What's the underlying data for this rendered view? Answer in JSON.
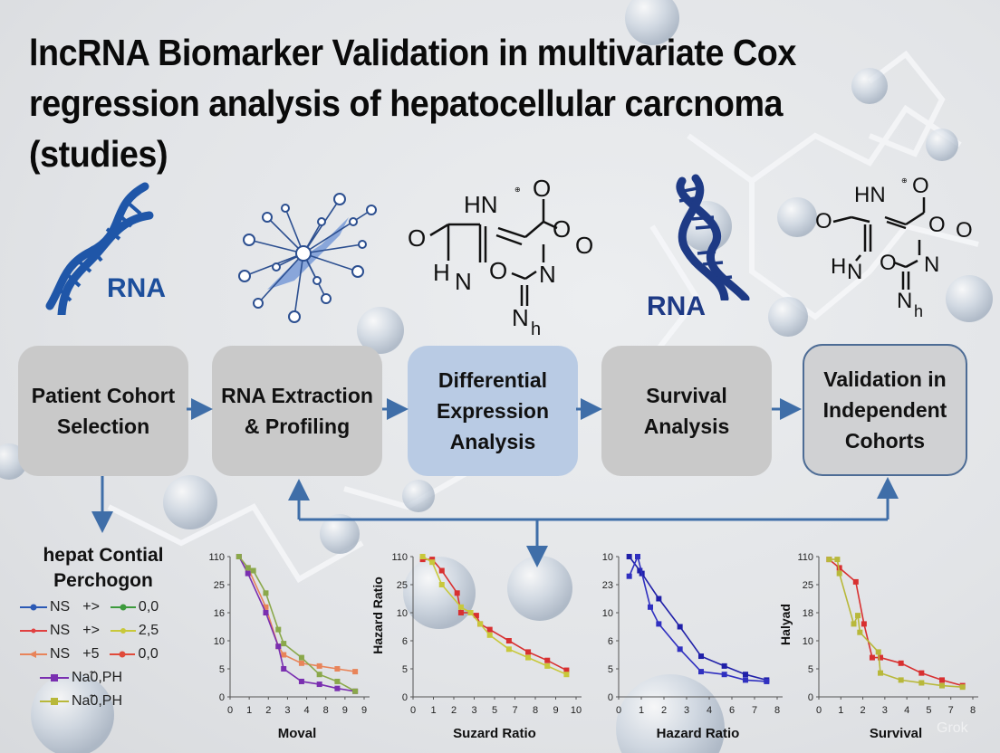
{
  "title": {
    "line1": "lncRNA Biomarker  Validation in multivariate Cox",
    "line2": "regression analysis of hepatocellular carcnoma",
    "line3": "(studies)"
  },
  "icons": [
    {
      "name": "dna-helix-icon",
      "label": "RNA"
    },
    {
      "name": "molecular-network-icon"
    },
    {
      "name": "chemical-structure-icon",
      "atoms": [
        "HN",
        "O",
        "O",
        "O",
        "O",
        "H",
        "N",
        "O",
        "N",
        "Nh"
      ]
    },
    {
      "name": "dna-helix-icon",
      "label": "RNA"
    },
    {
      "name": "chemical-structure-icon",
      "atoms": [
        "HN",
        "O",
        "O",
        "O",
        "O",
        "H",
        "N",
        "O",
        "N",
        "Nh"
      ]
    }
  ],
  "flow": {
    "steps": [
      {
        "label": "Patient Cohort\nSelection",
        "style": "gray"
      },
      {
        "label": "RNA Extraction\n& Profiling",
        "style": "gray"
      },
      {
        "label": "Differential\nExpression\nAnalysis",
        "style": "blue"
      },
      {
        "label": "Survival\nAnalysis",
        "style": "gray"
      },
      {
        "label": "Validation in\nIndependent\nCohorts",
        "style": "outlined"
      }
    ],
    "arrow_color": "#3f6ea8"
  },
  "legend": {
    "title_line1": "hepat Contial",
    "title_line2": "Perchogon",
    "rows": [
      {
        "left_label": "NS",
        "left_color": "#2b59b5",
        "mid": "+>",
        "right_label": "0,0",
        "right_color": "#3c9a3c"
      },
      {
        "left_label": "NS",
        "left_color": "#e04040",
        "mid": "+>",
        "right_label": "2,5",
        "right_color": "#c8c83a"
      },
      {
        "left_label": "NS",
        "left_color": "#e8845a",
        "mid": "+5",
        "right_label": "0,0",
        "right_color": "#e04a3a"
      },
      {
        "label": "Nа̃0,PH",
        "color": "#7a2fb0"
      },
      {
        "label": "Nа̃0,PH",
        "color": "#b8b83a"
      }
    ]
  },
  "chart_data": [
    {
      "type": "line",
      "title": "",
      "xlabel": "Moval",
      "ylabel": "",
      "x_ticks": [
        "0",
        "1",
        "2",
        "3",
        "4",
        "8",
        "9",
        "9"
      ],
      "y_ticks": [
        "0",
        "5",
        "10",
        "16",
        "25",
        "110"
      ],
      "series": [
        {
          "name": "orange",
          "color": "#e8845a",
          "x": [
            0.5,
            1,
            2,
            2.7,
            3,
            4,
            5,
            6,
            7
          ],
          "y": [
            5,
            4.6,
            3.2,
            1.8,
            1.5,
            1.2,
            1.1,
            1.0,
            0.9
          ]
        },
        {
          "name": "purple",
          "color": "#7a2fb0",
          "x": [
            0.5,
            1,
            2,
            2.7,
            3,
            4,
            5,
            6,
            7
          ],
          "y": [
            5,
            4.4,
            3.0,
            1.8,
            1.0,
            0.55,
            0.45,
            0.3,
            0.2
          ]
        },
        {
          "name": "green",
          "color": "#8aa84a",
          "x": [
            0.5,
            1,
            1.3,
            2,
            2.7,
            3,
            4,
            5,
            6,
            7
          ],
          "y": [
            5,
            4.6,
            4.5,
            3.7,
            2.4,
            1.9,
            1.4,
            0.8,
            0.55,
            0.2
          ]
        }
      ],
      "ylim": [
        0,
        5
      ]
    },
    {
      "type": "line",
      "title": "",
      "xlabel": "Suzard Ratio",
      "ylabel": "Hazard Ratio",
      "x_ticks": [
        "0",
        "1",
        "2",
        "3",
        "5",
        "7",
        "8",
        "9",
        "10"
      ],
      "y_ticks": [
        "0",
        "5",
        "6",
        "10",
        "25",
        "110"
      ],
      "series": [
        {
          "name": "red",
          "color": "#d83030",
          "x": [
            0.5,
            1,
            1.5,
            2.3,
            2.5,
            3,
            3.3,
            3.5,
            4,
            5,
            6,
            7,
            8
          ],
          "y": [
            4.9,
            4.9,
            4.5,
            3.7,
            3.0,
            3.0,
            2.9,
            2.6,
            2.4,
            2.0,
            1.6,
            1.3,
            0.95
          ]
        },
        {
          "name": "yellow",
          "color": "#c8c83a",
          "x": [
            0.5,
            1,
            1.5,
            2.5,
            3,
            3.5,
            4,
            5,
            6,
            7,
            8
          ],
          "y": [
            5.0,
            4.8,
            4.0,
            3.2,
            3.0,
            2.6,
            2.2,
            1.7,
            1.4,
            1.1,
            0.8
          ]
        }
      ],
      "ylim": [
        0,
        5
      ]
    },
    {
      "type": "line",
      "title": "",
      "xlabel": "Hazard Ratio",
      "ylabel": "",
      "x_ticks": [
        "0",
        "1",
        "2",
        "3",
        "4",
        "6",
        "7",
        "8"
      ],
      "y_ticks": [
        "0",
        "5",
        "6",
        "10",
        "23",
        "10"
      ],
      "series": [
        {
          "name": "blue-thick",
          "color": "#2020a8",
          "x": [
            0.5,
            1,
            1.1,
            1.9,
            2.9,
            3.9,
            5,
            6,
            7
          ],
          "y": [
            5.0,
            4.5,
            4.4,
            3.5,
            2.5,
            1.45,
            1.1,
            0.8,
            0.6
          ]
        },
        {
          "name": "blue-thin",
          "color": "#3030c0",
          "x": [
            0.5,
            0.9,
            1.5,
            1.9,
            2.9,
            3.9,
            5,
            6,
            7
          ],
          "y": [
            4.3,
            5.0,
            3.2,
            2.6,
            1.7,
            0.9,
            0.8,
            0.6,
            0.55
          ]
        }
      ],
      "ylim": [
        0,
        5
      ]
    },
    {
      "type": "line",
      "title": "",
      "xlabel": "Survival",
      "ylabel": "Halyad",
      "x_ticks": [
        "0",
        "1",
        "2",
        "3",
        "4",
        "5",
        "7",
        "8"
      ],
      "y_ticks": [
        "0",
        "5",
        "10",
        "18",
        "25",
        "110"
      ],
      "series": [
        {
          "name": "red",
          "color": "#d83030",
          "x": [
            0.5,
            1,
            1.8,
            2.2,
            2.6,
            3,
            4,
            5,
            6,
            7
          ],
          "y": [
            4.9,
            4.6,
            4.1,
            2.6,
            1.4,
            1.4,
            1.2,
            0.85,
            0.6,
            0.4
          ]
        },
        {
          "name": "yellow",
          "color": "#b8b83a",
          "x": [
            0.5,
            0.9,
            1,
            1.7,
            1.9,
            2,
            2.9,
            3,
            4,
            5,
            6,
            7
          ],
          "y": [
            4.9,
            4.9,
            4.4,
            2.6,
            2.9,
            2.3,
            1.6,
            0.85,
            0.6,
            0.5,
            0.4,
            0.35
          ]
        }
      ],
      "ylim": [
        0,
        5
      ]
    }
  ],
  "watermark": "Grok"
}
